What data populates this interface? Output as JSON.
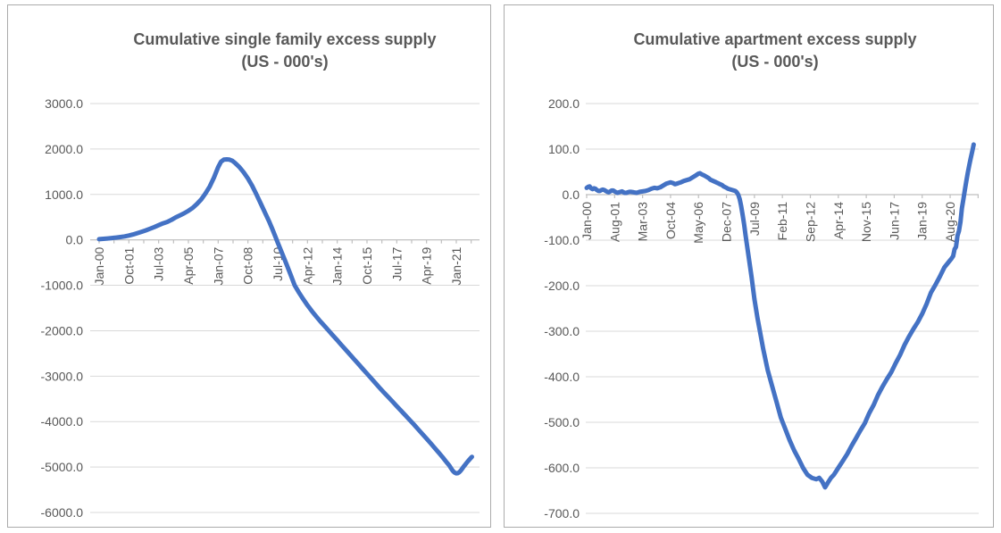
{
  "colors": {
    "line": "#4472C4",
    "gridline": "#d9d9d9",
    "axis_line": "#bfbfbf",
    "label_text": "#595959",
    "title_text": "#595959",
    "panel_border": "#ababab",
    "background": "#ffffff"
  },
  "chart_data": [
    {
      "id": "single_family",
      "type": "line",
      "title": "Cumulative single family excess supply (US - 000's)",
      "title_lines": [
        "Cumulative single family excess supply",
        "(US - 000's)"
      ],
      "legend": "none",
      "grid": true,
      "ylim": [
        -6000,
        3000
      ],
      "y_tick_labels": [
        "3000.0",
        "2000.0",
        "1000.0",
        "0.0",
        "-1000.0",
        "-2000.0",
        "-3000.0",
        "-4000.0",
        "-5000.0",
        "-6000.0"
      ],
      "x_tick_labels": [
        "Jan-00",
        "Oct-01",
        "Jul-03",
        "Apr-05",
        "Jan-07",
        "Oct-08",
        "Jul-10",
        "Apr-12",
        "Jan-14",
        "Oct-15",
        "Jul-17",
        "Apr-19",
        "Jan-21"
      ],
      "x_tick_months": [
        0,
        21,
        42,
        63,
        84,
        105,
        126,
        147,
        168,
        189,
        210,
        231,
        252
      ],
      "x_minor_tick_step_months": 10.5,
      "x_unit": "months since Jan-2000",
      "series": [
        {
          "points": [
            [
              0,
              15
            ],
            [
              3,
              22
            ],
            [
              6,
              30
            ],
            [
              9,
              40
            ],
            [
              12,
              50
            ],
            [
              15,
              62
            ],
            [
              18,
              76
            ],
            [
              21,
              95
            ],
            [
              24,
              120
            ],
            [
              27,
              148
            ],
            [
              30,
              178
            ],
            [
              33,
              210
            ],
            [
              36,
              245
            ],
            [
              39,
              283
            ],
            [
              42,
              323
            ],
            [
              45,
              362
            ],
            [
              48,
              395
            ],
            [
              51,
              440
            ],
            [
              54,
              495
            ],
            [
              57,
              540
            ],
            [
              60,
              585
            ],
            [
              63,
              640
            ],
            [
              66,
              705
            ],
            [
              69,
              790
            ],
            [
              72,
              890
            ],
            [
              75,
              1020
            ],
            [
              78,
              1170
            ],
            [
              81,
              1370
            ],
            [
              84,
              1600
            ],
            [
              86,
              1720
            ],
            [
              88,
              1765
            ],
            [
              90,
              1772
            ],
            [
              92,
              1765
            ],
            [
              94,
              1740
            ],
            [
              96,
              1690
            ],
            [
              99,
              1600
            ],
            [
              102,
              1485
            ],
            [
              105,
              1350
            ],
            [
              108,
              1190
            ],
            [
              111,
              1000
            ],
            [
              114,
              800
            ],
            [
              117,
              600
            ],
            [
              120,
              400
            ],
            [
              122,
              250
            ],
            [
              124,
              100
            ],
            [
              126,
              -60
            ],
            [
              129,
              -290
            ],
            [
              132,
              -520
            ],
            [
              135,
              -760
            ],
            [
              138,
              -1000
            ],
            [
              141,
              -1160
            ],
            [
              144,
              -1305
            ],
            [
              147,
              -1440
            ],
            [
              150,
              -1565
            ],
            [
              153,
              -1680
            ],
            [
              156,
              -1790
            ],
            [
              159,
              -1895
            ],
            [
              162,
              -2000
            ],
            [
              165,
              -2105
            ],
            [
              168,
              -2210
            ],
            [
              171,
              -2315
            ],
            [
              174,
              -2420
            ],
            [
              177,
              -2525
            ],
            [
              180,
              -2630
            ],
            [
              183,
              -2735
            ],
            [
              186,
              -2840
            ],
            [
              189,
              -2945
            ],
            [
              192,
              -3050
            ],
            [
              195,
              -3155
            ],
            [
              198,
              -3260
            ],
            [
              201,
              -3360
            ],
            [
              204,
              -3460
            ],
            [
              207,
              -3560
            ],
            [
              210,
              -3660
            ],
            [
              213,
              -3760
            ],
            [
              216,
              -3860
            ],
            [
              219,
              -3960
            ],
            [
              222,
              -4060
            ],
            [
              225,
              -4165
            ],
            [
              228,
              -4270
            ],
            [
              231,
              -4375
            ],
            [
              234,
              -4480
            ],
            [
              237,
              -4590
            ],
            [
              240,
              -4700
            ],
            [
              243,
              -4810
            ],
            [
              245,
              -4890
            ],
            [
              247,
              -4965
            ],
            [
              249,
              -5060
            ],
            [
              250,
              -5100
            ],
            [
              251,
              -5125
            ],
            [
              252,
              -5140
            ],
            [
              253,
              -5135
            ],
            [
              254,
              -5115
            ],
            [
              255,
              -5085
            ],
            [
              256,
              -5045
            ],
            [
              257,
              -5000
            ],
            [
              258,
              -4960
            ],
            [
              259,
              -4920
            ],
            [
              260,
              -4880
            ],
            [
              261,
              -4845
            ],
            [
              262,
              -4810
            ],
            [
              263,
              -4775
            ]
          ]
        }
      ]
    },
    {
      "id": "apartment",
      "type": "line",
      "title": "Cumulative apartment excess supply (US - 000's)",
      "title_lines": [
        "Cumulative apartment excess supply",
        "(US - 000's)"
      ],
      "legend": "none",
      "grid": true,
      "ylim": [
        -700,
        200
      ],
      "y_tick_labels": [
        "200.0",
        "100.0",
        "0.0",
        "-100.0",
        "-200.0",
        "-300.0",
        "-400.0",
        "-500.0",
        "-600.0",
        "-700.0"
      ],
      "x_tick_labels": [
        "Jan-00",
        "Aug-01",
        "Mar-03",
        "Oct-04",
        "May-06",
        "Dec-07",
        "Jul-09",
        "Feb-11",
        "Sep-12",
        "Apr-14",
        "Nov-15",
        "Jun-17",
        "Jan-19",
        "Aug-20"
      ],
      "x_tick_months": [
        0,
        19,
        38,
        57,
        76,
        95,
        114,
        133,
        152,
        171,
        190,
        209,
        228,
        247
      ],
      "x_minor_tick_step_months": 19,
      "x_unit": "months since Jan-2000",
      "series": [
        {
          "points": [
            [
              0,
              15
            ],
            [
              1,
              17
            ],
            [
              2,
              18
            ],
            [
              3,
              14
            ],
            [
              4,
              12
            ],
            [
              5,
              14
            ],
            [
              6,
              13
            ],
            [
              7,
              10
            ],
            [
              8,
              8
            ],
            [
              9,
              8
            ],
            [
              10,
              10
            ],
            [
              11,
              11
            ],
            [
              12,
              10
            ],
            [
              13,
              8
            ],
            [
              14,
              6
            ],
            [
              15,
              5
            ],
            [
              16,
              7
            ],
            [
              17,
              9
            ],
            [
              18,
              9
            ],
            [
              19,
              7
            ],
            [
              20,
              5
            ],
            [
              21,
              4
            ],
            [
              22,
              5
            ],
            [
              23,
              6
            ],
            [
              24,
              7
            ],
            [
              25,
              5
            ],
            [
              26,
              4
            ],
            [
              27,
              4
            ],
            [
              28,
              5
            ],
            [
              29,
              6
            ],
            [
              30,
              6
            ],
            [
              32,
              5
            ],
            [
              34,
              4
            ],
            [
              36,
              6
            ],
            [
              38,
              7
            ],
            [
              40,
              8
            ],
            [
              42,
              10
            ],
            [
              44,
              13
            ],
            [
              46,
              15
            ],
            [
              48,
              14
            ],
            [
              50,
              16
            ],
            [
              52,
              20
            ],
            [
              54,
              24
            ],
            [
              56,
              26
            ],
            [
              57,
              27
            ],
            [
              59,
              25
            ],
            [
              60,
              23
            ],
            [
              62,
              25
            ],
            [
              64,
              27
            ],
            [
              66,
              30
            ],
            [
              68,
              32
            ],
            [
              70,
              34
            ],
            [
              72,
              38
            ],
            [
              74,
              42
            ],
            [
              76,
              46
            ],
            [
              77,
              47
            ],
            [
              78,
              45
            ],
            [
              80,
              42
            ],
            [
              81,
              40
            ],
            [
              83,
              36
            ],
            [
              84,
              33
            ],
            [
              86,
              30
            ],
            [
              88,
              27
            ],
            [
              90,
              24
            ],
            [
              92,
              21
            ],
            [
              93,
              18
            ],
            [
              95,
              15
            ],
            [
              96,
              13
            ],
            [
              98,
              11
            ],
            [
              100,
              9
            ],
            [
              101,
              8
            ],
            [
              102,
              5
            ],
            [
              103,
              0
            ],
            [
              104,
              -10
            ],
            [
              105,
              -25
            ],
            [
              106,
              -45
            ],
            [
              107,
              -65
            ],
            [
              108,
              -90
            ],
            [
              110,
              -135
            ],
            [
              112,
              -180
            ],
            [
              114,
              -230
            ],
            [
              116,
              -270
            ],
            [
              118,
              -305
            ],
            [
              120,
              -340
            ],
            [
              123,
              -385
            ],
            [
              126,
              -420
            ],
            [
              129,
              -455
            ],
            [
              132,
              -490
            ],
            [
              135,
              -515
            ],
            [
              138,
              -540
            ],
            [
              141,
              -562
            ],
            [
              144,
              -580
            ],
            [
              147,
              -600
            ],
            [
              150,
              -615
            ],
            [
              153,
              -622
            ],
            [
              156,
              -625
            ],
            [
              158,
              -622
            ],
            [
              160,
              -630
            ],
            [
              162,
              -643
            ],
            [
              164,
              -632
            ],
            [
              166,
              -622
            ],
            [
              168,
              -615
            ],
            [
              171,
              -600
            ],
            [
              174,
              -585
            ],
            [
              177,
              -570
            ],
            [
              180,
              -552
            ],
            [
              183,
              -535
            ],
            [
              186,
              -518
            ],
            [
              189,
              -502
            ],
            [
              192,
              -480
            ],
            [
              195,
              -462
            ],
            [
              198,
              -440
            ],
            [
              201,
              -422
            ],
            [
              204,
              -405
            ],
            [
              207,
              -390
            ],
            [
              210,
              -370
            ],
            [
              213,
              -352
            ],
            [
              216,
              -330
            ],
            [
              219,
              -312
            ],
            [
              222,
              -295
            ],
            [
              225,
              -280
            ],
            [
              228,
              -262
            ],
            [
              231,
              -240
            ],
            [
              234,
              -215
            ],
            [
              237,
              -198
            ],
            [
              240,
              -180
            ],
            [
              243,
              -160
            ],
            [
              246,
              -148
            ],
            [
              248,
              -140
            ],
            [
              249,
              -135
            ],
            [
              250,
              -120
            ],
            [
              251,
              -115
            ],
            [
              252,
              -90
            ],
            [
              253,
              -80
            ],
            [
              254,
              -60
            ],
            [
              255,
              -30
            ],
            [
              256,
              -10
            ],
            [
              257,
              10
            ],
            [
              258,
              30
            ],
            [
              259,
              48
            ],
            [
              260,
              65
            ],
            [
              261,
              80
            ],
            [
              262,
              95
            ],
            [
              263,
              110
            ]
          ]
        }
      ]
    }
  ]
}
